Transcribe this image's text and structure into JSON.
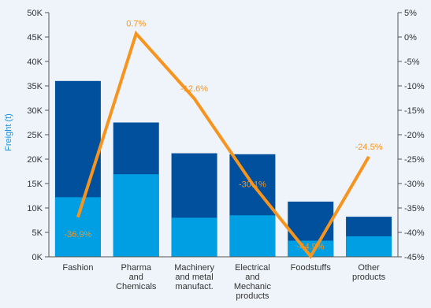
{
  "chart_data": {
    "type": "bar",
    "ylabel": "Freight (t)",
    "ylim": [
      0,
      50000
    ],
    "y2lim": [
      -45,
      5
    ],
    "y_ticks": [
      "0K",
      "5K",
      "10K",
      "15K",
      "20K",
      "25K",
      "30K",
      "35K",
      "40K",
      "45K",
      "50K"
    ],
    "y2_ticks": [
      "-45%",
      "-40%",
      "-35%",
      "-30%",
      "-25%",
      "-20%",
      "-15%",
      "-10%",
      "-5%",
      "0%",
      "5%"
    ],
    "categories": [
      [
        "Fashion"
      ],
      [
        "Pharma",
        "and",
        "Chemicals"
      ],
      [
        "Machinery",
        "and metal",
        "manufact."
      ],
      [
        "Electrical",
        "and",
        "Mechanic",
        "products"
      ],
      [
        "Foodstuffs"
      ],
      [
        "Other",
        "products"
      ]
    ],
    "series": [
      {
        "values": [
          12200,
          16900,
          8000,
          8500,
          3300,
          4200
        ],
        "color": "#009fe3"
      },
      {
        "values": [
          36000,
          27500,
          21200,
          21000,
          11300,
          8200
        ],
        "color": "#00509d"
      },
      {
        "values": [
          -36.9,
          0.7,
          -12.6,
          -30.1,
          -44.9,
          -24.5
        ],
        "color": "#f7941d",
        "axis": "right"
      }
    ],
    "line_labels": [
      "-36.9%",
      "0.7%",
      "-12.6%",
      "-30.1%",
      "-44.9%",
      "-24.5%"
    ],
    "grid": false
  }
}
